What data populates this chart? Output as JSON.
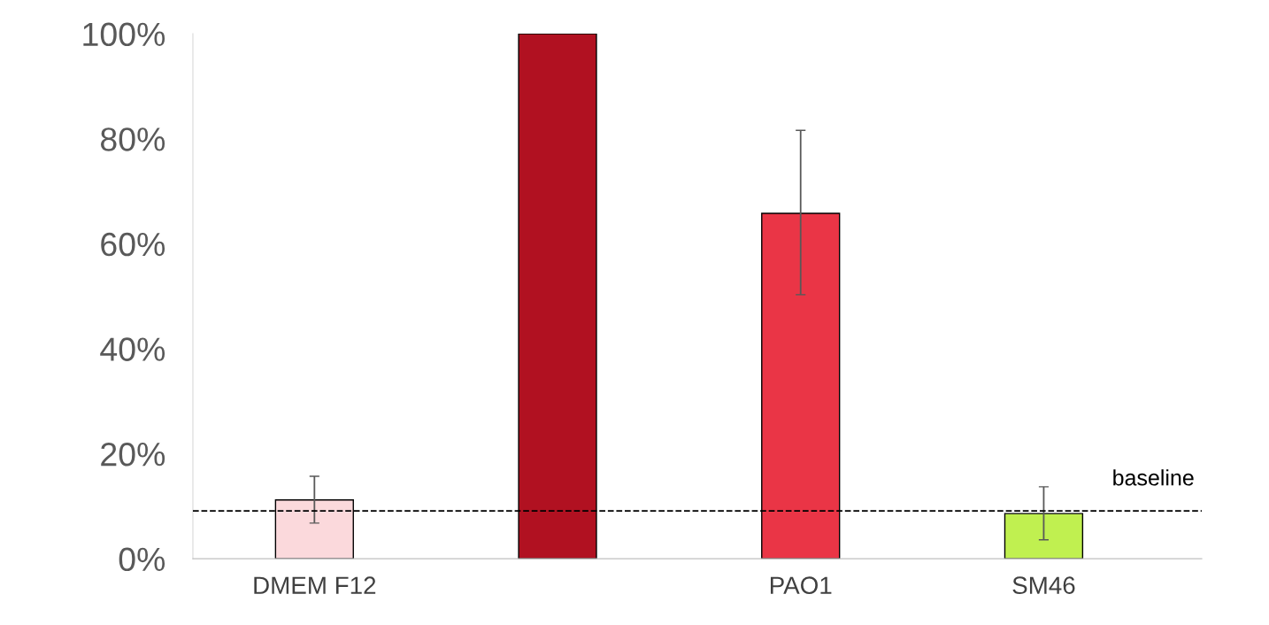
{
  "chart_data": {
    "type": "bar",
    "categories": [
      "DMEM F12",
      null,
      "PAO1",
      "SM46"
    ],
    "values": [
      11.2,
      100,
      65.8,
      8.6
    ],
    "colors": [
      "#fbd9dc",
      "#b11121",
      "#ea3546",
      "#c0f050"
    ],
    "errors": [
      [
        6.8,
        15.7
      ],
      null,
      [
        50.3,
        81.6
      ],
      [
        3.6,
        13.7
      ]
    ],
    "ylim": [
      0,
      100
    ],
    "yticks": [
      {
        "value": 0,
        "label": "0%"
      },
      {
        "value": 20,
        "label": "20%"
      },
      {
        "value": 40,
        "label": "40%"
      },
      {
        "value": 60,
        "label": "60%"
      },
      {
        "value": 80,
        "label": "80%"
      },
      {
        "value": 100,
        "label": "100%"
      }
    ],
    "ref_lines": [
      {
        "axis": "y",
        "value": 9.1,
        "label": "baseline",
        "color": "#000000",
        "line_style": "dashed"
      }
    ],
    "grid": false
  }
}
